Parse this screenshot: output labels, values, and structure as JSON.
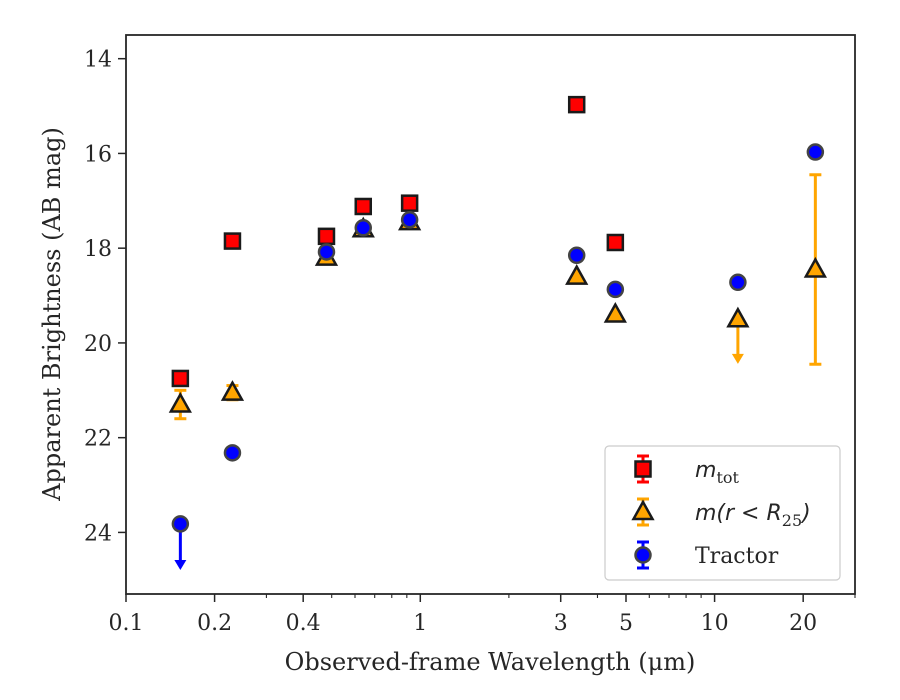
{
  "chart_data": {
    "type": "scatter",
    "xlabel": "Observed-frame Wavelength (μm)",
    "ylabel": "Apparent Brightness (AB mag)",
    "xscale": "log",
    "xlim": [
      0.1,
      30
    ],
    "ylim": [
      25.3,
      13.5
    ],
    "y_inverted": true,
    "grid": false,
    "legend_position": "lower-right",
    "x_ticks": [
      {
        "value": 0.1,
        "label": "0.1"
      },
      {
        "value": 0.2,
        "label": "0.2"
      },
      {
        "value": 0.4,
        "label": "0.4"
      },
      {
        "value": 1,
        "label": "1"
      },
      {
        "value": 3,
        "label": "3"
      },
      {
        "value": 5,
        "label": "5"
      },
      {
        "value": 10,
        "label": "10"
      },
      {
        "value": 20,
        "label": "20"
      }
    ],
    "y_ticks": [
      {
        "value": 14,
        "label": "14"
      },
      {
        "value": 16,
        "label": "16"
      },
      {
        "value": 18,
        "label": "18"
      },
      {
        "value": 20,
        "label": "20"
      },
      {
        "value": 22,
        "label": "22"
      },
      {
        "value": 24,
        "label": "24"
      }
    ],
    "series": [
      {
        "name": "m_tot",
        "legend_label": {
          "base": "m",
          "sub": "tot"
        },
        "marker": "square",
        "color": "#ff0000",
        "edge_color": "#1a1a1a",
        "points": [
          {
            "x": 0.153,
            "y": 20.75
          },
          {
            "x": 0.23,
            "y": 17.85
          },
          {
            "x": 0.48,
            "y": 17.75
          },
          {
            "x": 0.64,
            "y": 17.12
          },
          {
            "x": 0.92,
            "y": 17.05
          },
          {
            "x": 3.4,
            "y": 14.97
          },
          {
            "x": 4.6,
            "y": 17.88
          }
        ]
      },
      {
        "name": "m(r < R25)",
        "legend_label": {
          "base": "m(r < R",
          "sub": "25",
          "tail": ")"
        },
        "marker": "triangle",
        "color": "#ffa500",
        "edge_color": "#1a1a1a",
        "points": [
          {
            "x": 0.153,
            "y": 21.3,
            "yerr": [
              0.3,
              0.3
            ]
          },
          {
            "x": 0.23,
            "y": 21.05,
            "yerr": [
              0.15,
              0.15
            ]
          },
          {
            "x": 0.48,
            "y": 18.2
          },
          {
            "x": 0.64,
            "y": 17.6
          },
          {
            "x": 0.92,
            "y": 17.45
          },
          {
            "x": 3.4,
            "y": 18.6
          },
          {
            "x": 4.6,
            "y": 19.4
          },
          {
            "x": 12.0,
            "y": 19.5,
            "upper_limit": 20.4
          },
          {
            "x": 22.0,
            "y": 18.45,
            "yerr": [
              2.0,
              2.0
            ]
          }
        ]
      },
      {
        "name": "Tractor",
        "legend_label": {
          "base": "Tractor"
        },
        "marker": "circle",
        "color": "#0000ff",
        "edge_color": "#444444",
        "points": [
          {
            "x": 0.153,
            "y": 23.82,
            "upper_limit": 24.75
          },
          {
            "x": 0.23,
            "y": 22.32
          },
          {
            "x": 0.48,
            "y": 18.08
          },
          {
            "x": 0.64,
            "y": 17.57
          },
          {
            "x": 0.92,
            "y": 17.4
          },
          {
            "x": 3.4,
            "y": 18.15
          },
          {
            "x": 4.6,
            "y": 18.87
          },
          {
            "x": 12.0,
            "y": 18.72
          },
          {
            "x": 22.0,
            "y": 15.97
          }
        ]
      }
    ]
  }
}
